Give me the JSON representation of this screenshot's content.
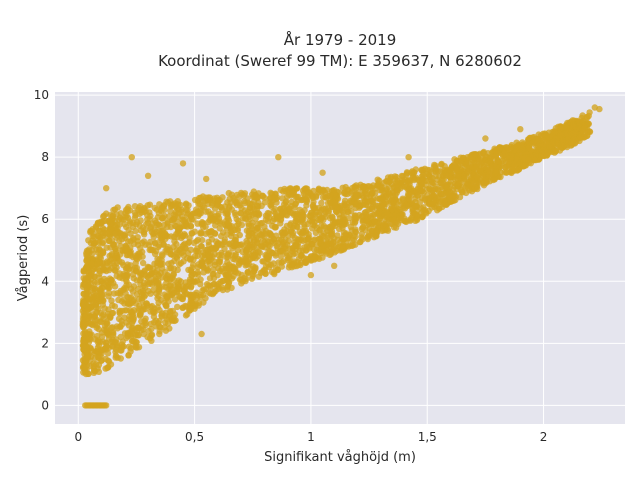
{
  "chart_data": {
    "type": "scatter",
    "title": "År 1979 - 2019",
    "subtitle": "Koordinat (Sweref 99 TM): E 359637, N 6280602",
    "xlabel": "Signifikant våghöjd (m)",
    "ylabel": "Vågperiod (s)",
    "xlim": [
      -0.1,
      2.35
    ],
    "ylim": [
      -0.6,
      10.1
    ],
    "x_ticks": [
      0,
      0.5,
      1,
      1.5,
      2
    ],
    "x_tick_labels": [
      "0",
      "0,5",
      "1",
      "1,5",
      "2"
    ],
    "y_ticks": [
      0,
      2,
      4,
      6,
      8,
      10
    ],
    "y_tick_labels": [
      "0",
      "2",
      "4",
      "6",
      "8",
      "10"
    ],
    "grid": true,
    "marker_color": "#d4a41f",
    "marker_opacity": 0.78,
    "background_color": "#e5e5ee",
    "density_envelope": [
      {
        "x": 0.02,
        "lower": 1.0,
        "upper": 4.4
      },
      {
        "x": 0.05,
        "lower": 1.0,
        "upper": 5.6
      },
      {
        "x": 0.1,
        "lower": 1.1,
        "upper": 6.2
      },
      {
        "x": 0.15,
        "lower": 1.3,
        "upper": 6.4
      },
      {
        "x": 0.2,
        "lower": 1.5,
        "upper": 6.4
      },
      {
        "x": 0.3,
        "lower": 2.0,
        "upper": 6.5
      },
      {
        "x": 0.4,
        "lower": 2.5,
        "upper": 6.6
      },
      {
        "x": 0.5,
        "lower": 3.1,
        "upper": 6.7
      },
      {
        "x": 0.6,
        "lower": 3.6,
        "upper": 6.8
      },
      {
        "x": 0.7,
        "lower": 3.9,
        "upper": 6.9
      },
      {
        "x": 0.8,
        "lower": 4.1,
        "upper": 6.9
      },
      {
        "x": 0.9,
        "lower": 4.4,
        "upper": 7.0
      },
      {
        "x": 1.0,
        "lower": 4.6,
        "upper": 7.0
      },
      {
        "x": 1.1,
        "lower": 4.9,
        "upper": 7.0
      },
      {
        "x": 1.2,
        "lower": 5.2,
        "upper": 7.1
      },
      {
        "x": 1.3,
        "lower": 5.5,
        "upper": 7.3
      },
      {
        "x": 1.4,
        "lower": 5.8,
        "upper": 7.5
      },
      {
        "x": 1.5,
        "lower": 6.1,
        "upper": 7.7
      },
      {
        "x": 1.6,
        "lower": 6.5,
        "upper": 7.9
      },
      {
        "x": 1.7,
        "lower": 6.9,
        "upper": 8.1
      },
      {
        "x": 1.8,
        "lower": 7.3,
        "upper": 8.3
      },
      {
        "x": 1.9,
        "lower": 7.6,
        "upper": 8.5
      },
      {
        "x": 2.0,
        "lower": 8.0,
        "upper": 8.8
      },
      {
        "x": 2.1,
        "lower": 8.3,
        "upper": 9.1
      },
      {
        "x": 2.2,
        "lower": 8.7,
        "upper": 9.5
      }
    ],
    "zero_period_points": {
      "x_range": [
        0.03,
        0.12
      ],
      "y": 0
    },
    "outliers": [
      {
        "x": 0.23,
        "y": 8.0
      },
      {
        "x": 0.45,
        "y": 7.8
      },
      {
        "x": 0.86,
        "y": 8.0
      },
      {
        "x": 1.42,
        "y": 8.0
      },
      {
        "x": 0.3,
        "y": 7.4
      },
      {
        "x": 0.12,
        "y": 7.0
      },
      {
        "x": 0.55,
        "y": 7.3
      },
      {
        "x": 1.05,
        "y": 7.5
      },
      {
        "x": 1.75,
        "y": 8.6
      },
      {
        "x": 1.9,
        "y": 8.9
      },
      {
        "x": 2.22,
        "y": 9.6
      },
      {
        "x": 2.24,
        "y": 9.55
      },
      {
        "x": 1.0,
        "y": 4.2
      },
      {
        "x": 1.1,
        "y": 4.5
      },
      {
        "x": 0.53,
        "y": 2.3
      }
    ]
  }
}
